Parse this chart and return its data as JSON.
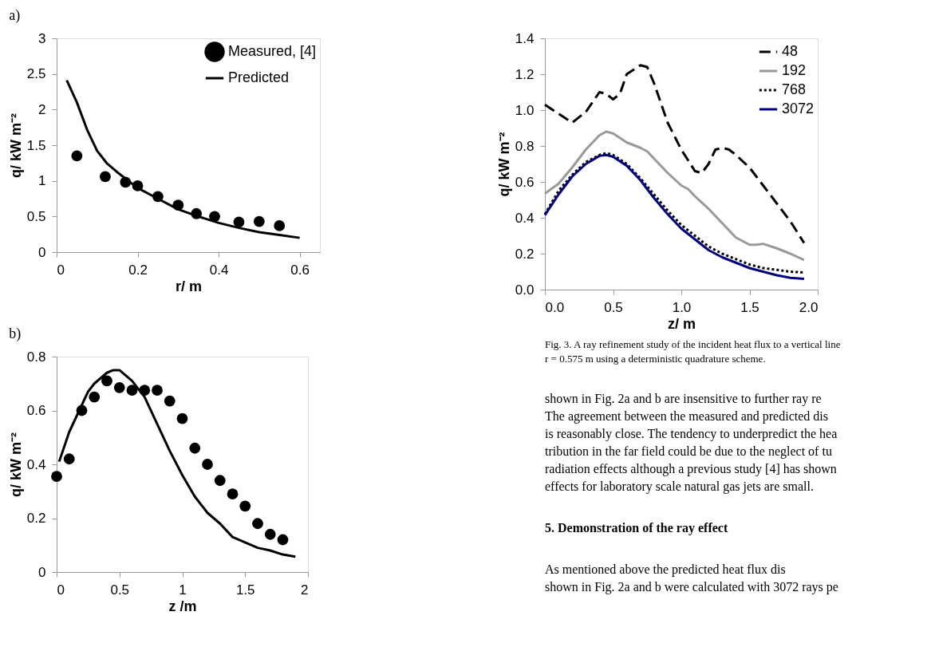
{
  "chart_data": [
    {
      "type": "line",
      "title": "a)",
      "xlabel": "r/ m",
      "ylabel": "q/ kW m⁻²",
      "xlim": [
        0,
        0.65
      ],
      "xticks": [
        0,
        0.2,
        0.4,
        0.6
      ],
      "ylim": [
        0,
        3
      ],
      "yticks": [
        0,
        0.5,
        1,
        1.5,
        2,
        2.5,
        3
      ],
      "grid": false,
      "legend": "top right",
      "series": [
        {
          "name": "Measured, [4]",
          "type": "scatter",
          "marker": "circle",
          "color": "#000000",
          "x": [
            0.05,
            0.12,
            0.17,
            0.2,
            0.25,
            0.3,
            0.345,
            0.39,
            0.45,
            0.5,
            0.55
          ],
          "values": [
            1.35,
            1.06,
            0.98,
            0.93,
            0.78,
            0.66,
            0.54,
            0.5,
            0.42,
            0.43,
            0.37
          ]
        },
        {
          "name": "Predicted",
          "type": "line",
          "color": "#000000",
          "line_style": "solid",
          "x": [
            0.025,
            0.05,
            0.075,
            0.1,
            0.125,
            0.15,
            0.2,
            0.25,
            0.3,
            0.35,
            0.4,
            0.45,
            0.5,
            0.55,
            0.6
          ],
          "values": [
            2.41,
            2.1,
            1.72,
            1.42,
            1.24,
            1.12,
            0.9,
            0.75,
            0.6,
            0.5,
            0.41,
            0.34,
            0.28,
            0.24,
            0.2
          ]
        }
      ]
    },
    {
      "type": "line",
      "title": "b)",
      "xlabel": "z /m",
      "ylabel": "q/ kW m⁻²",
      "xlim": [
        0,
        2
      ],
      "xticks": [
        0,
        0.5,
        1,
        1.5,
        2
      ],
      "ylim": [
        0,
        0.8
      ],
      "yticks": [
        0,
        0.2,
        0.4,
        0.6,
        0.8
      ],
      "grid": false,
      "series": [
        {
          "type": "scatter",
          "marker": "circle",
          "color": "#000000",
          "x": [
            0,
            0.1,
            0.2,
            0.3,
            0.4,
            0.5,
            0.6,
            0.7,
            0.8,
            0.9,
            1.0,
            1.1,
            1.2,
            1.3,
            1.4,
            1.5,
            1.6,
            1.7,
            1.8
          ],
          "values": [
            0.355,
            0.42,
            0.6,
            0.65,
            0.71,
            0.685,
            0.675,
            0.675,
            0.675,
            0.635,
            0.57,
            0.46,
            0.4,
            0.34,
            0.29,
            0.245,
            0.18,
            0.14,
            0.12
          ]
        },
        {
          "type": "line",
          "color": "#000000",
          "line_style": "solid",
          "x": [
            0.02,
            0.1,
            0.2,
            0.25,
            0.3,
            0.4,
            0.45,
            0.5,
            0.6,
            0.7,
            0.8,
            0.9,
            1.0,
            1.1,
            1.2,
            1.3,
            1.4,
            1.5,
            1.6,
            1.7,
            1.8,
            1.9
          ],
          "values": [
            0.41,
            0.52,
            0.62,
            0.67,
            0.7,
            0.74,
            0.75,
            0.75,
            0.71,
            0.65,
            0.55,
            0.45,
            0.36,
            0.28,
            0.22,
            0.18,
            0.13,
            0.11,
            0.09,
            0.08,
            0.065,
            0.057
          ]
        }
      ]
    },
    {
      "type": "line",
      "xlabel": "z/ m",
      "ylabel": "q/ kW m⁻²",
      "xlim": [
        0,
        2
      ],
      "xticks": [
        {
          "value": 0,
          "label": "0.0"
        },
        {
          "value": 0.5,
          "label": "0.5"
        },
        {
          "value": 1,
          "label": "1.0"
        },
        {
          "value": 1.5,
          "label": "1.5"
        },
        {
          "value": 2,
          "label": "2.0"
        }
      ],
      "ylim": [
        0,
        1.4
      ],
      "yticks": [
        {
          "value": 0,
          "label": "0.0"
        },
        {
          "value": 0.2,
          "label": "0.2"
        },
        {
          "value": 0.4,
          "label": "0.4"
        },
        {
          "value": 0.6,
          "label": "0.6"
        },
        {
          "value": 0.8,
          "label": "0.8"
        },
        {
          "value": 1,
          "label": "1.0"
        },
        {
          "value": 1.2,
          "label": "1.2"
        },
        {
          "value": 1.4,
          "label": "1.4"
        }
      ],
      "grid": false,
      "legend": "top right",
      "series": [
        {
          "name": "48",
          "color": "#000000",
          "line_style": "dashed",
          "x": [
            0,
            0.1,
            0.2,
            0.3,
            0.4,
            0.45,
            0.5,
            0.55,
            0.6,
            0.7,
            0.75,
            0.8,
            0.9,
            1.0,
            1.1,
            1.15,
            1.2,
            1.25,
            1.3,
            1.35,
            1.4,
            1.5,
            1.6,
            1.7,
            1.8,
            1.9
          ],
          "values": [
            1.03,
            0.98,
            0.93,
            0.99,
            1.1,
            1.09,
            1.06,
            1.09,
            1.2,
            1.25,
            1.24,
            1.15,
            0.93,
            0.78,
            0.66,
            0.65,
            0.7,
            0.78,
            0.79,
            0.78,
            0.75,
            0.68,
            0.58,
            0.48,
            0.38,
            0.26
          ]
        },
        {
          "name": "192",
          "color": "#999999",
          "line_style": "solid",
          "x": [
            0,
            0.1,
            0.2,
            0.3,
            0.4,
            0.45,
            0.5,
            0.6,
            0.7,
            0.75,
            0.8,
            0.9,
            1.0,
            1.05,
            1.1,
            1.2,
            1.3,
            1.4,
            1.5,
            1.55,
            1.6,
            1.7,
            1.8,
            1.9
          ],
          "values": [
            0.535,
            0.59,
            0.68,
            0.78,
            0.86,
            0.88,
            0.87,
            0.82,
            0.79,
            0.77,
            0.73,
            0.65,
            0.58,
            0.56,
            0.52,
            0.45,
            0.37,
            0.29,
            0.25,
            0.25,
            0.255,
            0.23,
            0.2,
            0.165
          ]
        },
        {
          "name": "768",
          "color": "#000000",
          "line_style": "dotted",
          "x": [
            0,
            0.1,
            0.2,
            0.3,
            0.4,
            0.45,
            0.5,
            0.6,
            0.7,
            0.8,
            0.9,
            1.0,
            1.1,
            1.2,
            1.3,
            1.4,
            1.5,
            1.6,
            1.7,
            1.8,
            1.9
          ],
          "values": [
            0.42,
            0.55,
            0.64,
            0.71,
            0.75,
            0.76,
            0.75,
            0.7,
            0.62,
            0.53,
            0.44,
            0.36,
            0.3,
            0.24,
            0.2,
            0.17,
            0.14,
            0.12,
            0.11,
            0.1,
            0.095
          ]
        },
        {
          "name": "3072",
          "color": "#000080",
          "line_style": "solid",
          "x": [
            0,
            0.1,
            0.2,
            0.3,
            0.4,
            0.45,
            0.5,
            0.6,
            0.7,
            0.8,
            0.9,
            1.0,
            1.1,
            1.2,
            1.3,
            1.4,
            1.5,
            1.6,
            1.7,
            1.8,
            1.9
          ],
          "values": [
            0.415,
            0.53,
            0.63,
            0.7,
            0.745,
            0.75,
            0.74,
            0.69,
            0.61,
            0.51,
            0.42,
            0.34,
            0.28,
            0.22,
            0.18,
            0.15,
            0.12,
            0.1,
            0.08,
            0.066,
            0.06
          ]
        }
      ],
      "annotations": [
        "Fig. 3. A ray refinement study of the incident heat flux to a vertical line",
        "r = 0.575 m using a deterministic quadrature scheme.",
        "shown in Fig. 2a and b are insensitive to further ray re",
        "The agreement between the measured and predicted dis",
        "is reasonably close. The tendency to underpredict the hea",
        "tribution in the far field could be due to the neglect of tu",
        "radiation effects although a previous study [4] has shown",
        "effects for laboratory scale natural gas jets are small.",
        "5.  Demonstration of the ray effect",
        "As mentioned above the predicted heat flux dis",
        "shown in Fig. 2a and b were calculated with 3072 rays pe"
      ]
    }
  ]
}
